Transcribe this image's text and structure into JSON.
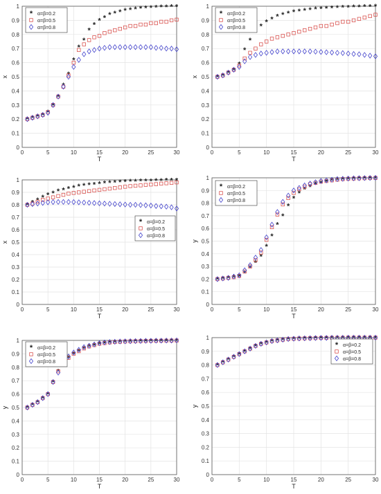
{
  "chart_data": [
    {
      "type": "scatter",
      "xlabel": "T",
      "ylabel": "x",
      "xlim": [
        0,
        30
      ],
      "ylim": [
        0,
        1
      ],
      "xticks": [
        "0",
        "5",
        "10",
        "15",
        "20",
        "25",
        "30"
      ],
      "yticks": [
        "0",
        "0.1",
        "0.2",
        "0.3",
        "0.4",
        "0.5",
        "0.6",
        "0.7",
        "0.8",
        "0.9",
        "1"
      ],
      "grid": true,
      "legend_position": "top-left",
      "x": [
        1,
        2,
        3,
        4,
        5,
        6,
        7,
        8,
        9,
        10,
        11,
        12,
        13,
        14,
        15,
        16,
        17,
        18,
        19,
        20,
        21,
        22,
        23,
        24,
        25,
        26,
        27,
        28,
        29,
        30
      ],
      "series": [
        {
          "name": "α=β=0.2",
          "marker": "star",
          "color": "#222222",
          "values": [
            0.2,
            0.21,
            0.22,
            0.23,
            0.25,
            0.3,
            0.36,
            0.44,
            0.52,
            0.62,
            0.71,
            0.76,
            0.83,
            0.87,
            0.9,
            0.92,
            0.94,
            0.95,
            0.96,
            0.97,
            0.975,
            0.98,
            0.985,
            0.988,
            0.99,
            0.992,
            0.994,
            0.995,
            0.997,
            0.998
          ]
        },
        {
          "name": "α=β=0.5",
          "marker": "square",
          "color": "#d9534f",
          "values": [
            0.2,
            0.21,
            0.22,
            0.23,
            0.25,
            0.3,
            0.36,
            0.43,
            0.51,
            0.6,
            0.69,
            0.73,
            0.76,
            0.78,
            0.79,
            0.81,
            0.82,
            0.83,
            0.84,
            0.85,
            0.86,
            0.86,
            0.87,
            0.87,
            0.88,
            0.88,
            0.89,
            0.89,
            0.9,
            0.905
          ]
        },
        {
          "name": "α=β=0.8",
          "marker": "diamond",
          "color": "#4444cc",
          "values": [
            0.2,
            0.21,
            0.22,
            0.23,
            0.245,
            0.3,
            0.36,
            0.43,
            0.5,
            0.57,
            0.62,
            0.66,
            0.68,
            0.69,
            0.7,
            0.705,
            0.71,
            0.71,
            0.71,
            0.71,
            0.71,
            0.71,
            0.71,
            0.71,
            0.71,
            0.705,
            0.705,
            0.7,
            0.7,
            0.695
          ]
        }
      ]
    },
    {
      "type": "scatter",
      "xlabel": "T",
      "ylabel": "x",
      "xlim": [
        0,
        30
      ],
      "ylim": [
        0,
        1
      ],
      "xticks": [
        "0",
        "5",
        "10",
        "15",
        "20",
        "25",
        "30"
      ],
      "yticks": [
        "0",
        "0.1",
        "0.2",
        "0.3",
        "0.4",
        "0.5",
        "0.6",
        "0.7",
        "0.8",
        "0.9",
        "1"
      ],
      "grid": true,
      "legend_position": "top-left",
      "x": [
        1,
        2,
        3,
        4,
        5,
        6,
        7,
        8,
        9,
        10,
        11,
        12,
        13,
        14,
        15,
        16,
        17,
        18,
        19,
        20,
        21,
        22,
        23,
        24,
        25,
        26,
        27,
        28,
        29,
        30
      ],
      "series": [
        {
          "name": "α=β=0.2",
          "marker": "star",
          "color": "#222222",
          "values": [
            0.5,
            0.51,
            0.53,
            0.55,
            0.59,
            0.69,
            0.76,
            0.82,
            0.86,
            0.89,
            0.91,
            0.93,
            0.94,
            0.95,
            0.96,
            0.965,
            0.97,
            0.975,
            0.98,
            0.983,
            0.986,
            0.988,
            0.99,
            0.992,
            0.993,
            0.995,
            0.996,
            0.997,
            0.998,
            0.999
          ]
        },
        {
          "name": "α=β=0.5",
          "marker": "square",
          "color": "#d9534f",
          "values": [
            0.5,
            0.51,
            0.53,
            0.55,
            0.58,
            0.63,
            0.67,
            0.7,
            0.73,
            0.75,
            0.77,
            0.78,
            0.79,
            0.8,
            0.81,
            0.82,
            0.83,
            0.84,
            0.85,
            0.86,
            0.86,
            0.87,
            0.88,
            0.89,
            0.89,
            0.9,
            0.91,
            0.92,
            0.93,
            0.94
          ]
        },
        {
          "name": "α=β=0.8",
          "marker": "diamond",
          "color": "#4444cc",
          "values": [
            0.5,
            0.51,
            0.53,
            0.55,
            0.57,
            0.61,
            0.64,
            0.655,
            0.665,
            0.67,
            0.675,
            0.68,
            0.68,
            0.68,
            0.68,
            0.68,
            0.68,
            0.68,
            0.678,
            0.676,
            0.674,
            0.672,
            0.67,
            0.668,
            0.665,
            0.662,
            0.66,
            0.655,
            0.65,
            0.645
          ]
        }
      ]
    },
    {
      "type": "scatter",
      "xlabel": "T",
      "ylabel": "x",
      "xlim": [
        0,
        30
      ],
      "ylim": [
        0,
        1
      ],
      "xticks": [
        "0",
        "5",
        "10",
        "15",
        "20",
        "25",
        "30"
      ],
      "yticks": [
        "0",
        "0.1",
        "0.2",
        "0.3",
        "0.4",
        "0.5",
        "0.6",
        "0.7",
        "0.8",
        "0.9",
        "1"
      ],
      "grid": true,
      "legend_position": "middle-right",
      "x": [
        1,
        2,
        3,
        4,
        5,
        6,
        7,
        8,
        9,
        10,
        11,
        12,
        13,
        14,
        15,
        16,
        17,
        18,
        19,
        20,
        21,
        22,
        23,
        24,
        25,
        26,
        27,
        28,
        29,
        30
      ],
      "series": [
        {
          "name": "α=β=0.2",
          "marker": "star",
          "color": "#222222",
          "values": [
            0.8,
            0.82,
            0.84,
            0.86,
            0.88,
            0.895,
            0.91,
            0.92,
            0.93,
            0.94,
            0.95,
            0.955,
            0.96,
            0.965,
            0.97,
            0.975,
            0.978,
            0.981,
            0.984,
            0.986,
            0.988,
            0.99,
            0.991,
            0.992,
            0.993,
            0.994,
            0.995,
            0.996,
            0.997,
            0.998
          ]
        },
        {
          "name": "α=β=0.5",
          "marker": "square",
          "color": "#d9534f",
          "values": [
            0.8,
            0.81,
            0.825,
            0.84,
            0.85,
            0.86,
            0.87,
            0.88,
            0.89,
            0.895,
            0.9,
            0.905,
            0.91,
            0.915,
            0.92,
            0.925,
            0.93,
            0.935,
            0.94,
            0.945,
            0.95,
            0.953,
            0.956,
            0.96,
            0.963,
            0.966,
            0.97,
            0.973,
            0.976,
            0.98
          ]
        },
        {
          "name": "α=β=0.8",
          "marker": "diamond",
          "color": "#4444cc",
          "values": [
            0.8,
            0.805,
            0.81,
            0.815,
            0.82,
            0.822,
            0.823,
            0.823,
            0.823,
            0.822,
            0.82,
            0.818,
            0.816,
            0.814,
            0.812,
            0.81,
            0.808,
            0.806,
            0.804,
            0.802,
            0.8,
            0.8,
            0.798,
            0.796,
            0.794,
            0.79,
            0.788,
            0.785,
            0.78,
            0.77
          ]
        }
      ]
    },
    {
      "type": "scatter",
      "xlabel": "T",
      "ylabel": "y",
      "xlim": [
        0,
        30
      ],
      "ylim": [
        0,
        1
      ],
      "xticks": [
        "0",
        "5",
        "10",
        "15",
        "20",
        "25",
        "30"
      ],
      "yticks": [
        "0",
        "0.1",
        "0.2",
        "0.3",
        "0.4",
        "0.5",
        "0.6",
        "0.7",
        "0.8",
        "0.9",
        "1"
      ],
      "grid": true,
      "legend_position": "top-left",
      "x": [
        1,
        2,
        3,
        4,
        5,
        6,
        7,
        8,
        9,
        10,
        11,
        12,
        13,
        14,
        15,
        16,
        17,
        18,
        19,
        20,
        21,
        22,
        23,
        24,
        25,
        26,
        27,
        28,
        29,
        30
      ],
      "series": [
        {
          "name": "α=β=0.2",
          "marker": "star",
          "color": "#222222",
          "values": [
            0.2,
            0.205,
            0.21,
            0.215,
            0.22,
            0.25,
            0.29,
            0.33,
            0.38,
            0.46,
            0.54,
            0.63,
            0.7,
            0.78,
            0.84,
            0.88,
            0.91,
            0.93,
            0.95,
            0.96,
            0.97,
            0.98,
            0.985,
            0.99,
            0.992,
            0.994,
            0.996,
            0.997,
            0.998,
            0.999
          ]
        },
        {
          "name": "α=β=0.5",
          "marker": "square",
          "color": "#d9534f",
          "values": [
            0.2,
            0.205,
            0.21,
            0.215,
            0.225,
            0.26,
            0.3,
            0.35,
            0.41,
            0.51,
            0.61,
            0.71,
            0.79,
            0.84,
            0.88,
            0.91,
            0.93,
            0.95,
            0.96,
            0.97,
            0.975,
            0.98,
            0.985,
            0.99,
            0.992,
            0.994,
            0.996,
            0.997,
            0.998,
            0.999
          ]
        },
        {
          "name": "α=β=0.8",
          "marker": "diamond",
          "color": "#4444cc",
          "values": [
            0.2,
            0.205,
            0.21,
            0.22,
            0.23,
            0.27,
            0.31,
            0.37,
            0.43,
            0.53,
            0.63,
            0.73,
            0.81,
            0.86,
            0.9,
            0.92,
            0.94,
            0.955,
            0.965,
            0.975,
            0.98,
            0.985,
            0.99,
            0.992,
            0.994,
            0.996,
            0.997,
            0.998,
            0.999,
            1.0
          ]
        }
      ]
    },
    {
      "type": "scatter",
      "xlabel": "T",
      "ylabel": "y",
      "xlim": [
        0,
        30
      ],
      "ylim": [
        0,
        1
      ],
      "xticks": [
        "0",
        "5",
        "10",
        "15",
        "20",
        "25",
        "30"
      ],
      "yticks": [
        "0",
        "0.1",
        "0.2",
        "0.3",
        "0.4",
        "0.5",
        "0.6",
        "0.7",
        "0.8",
        "0.9",
        "1"
      ],
      "grid": true,
      "legend_position": "top-left",
      "x": [
        1,
        2,
        3,
        4,
        5,
        6,
        7,
        8,
        9,
        10,
        11,
        12,
        13,
        14,
        15,
        16,
        17,
        18,
        19,
        20,
        21,
        22,
        23,
        24,
        25,
        26,
        27,
        28,
        29,
        30
      ],
      "series": [
        {
          "name": "α=β=0.2",
          "marker": "star",
          "color": "#222222",
          "values": [
            0.5,
            0.52,
            0.54,
            0.57,
            0.6,
            0.69,
            0.77,
            0.83,
            0.87,
            0.9,
            0.92,
            0.94,
            0.955,
            0.965,
            0.975,
            0.98,
            0.985,
            0.988,
            0.99,
            0.992,
            0.993,
            0.994,
            0.995,
            0.996,
            0.997,
            0.997,
            0.998,
            0.998,
            0.999,
            0.999
          ]
        },
        {
          "name": "α=β=0.5",
          "marker": "square",
          "color": "#d9534f",
          "values": [
            0.5,
            0.52,
            0.54,
            0.57,
            0.6,
            0.69,
            0.77,
            0.83,
            0.87,
            0.9,
            0.92,
            0.94,
            0.955,
            0.965,
            0.975,
            0.98,
            0.985,
            0.988,
            0.99,
            0.992,
            0.993,
            0.994,
            0.995,
            0.996,
            0.997,
            0.997,
            0.998,
            0.998,
            0.999,
            0.999
          ]
        },
        {
          "name": "α=β=0.8",
          "marker": "diamond",
          "color": "#4444cc",
          "values": [
            0.5,
            0.52,
            0.54,
            0.57,
            0.6,
            0.69,
            0.76,
            0.83,
            0.88,
            0.91,
            0.93,
            0.95,
            0.96,
            0.97,
            0.98,
            0.985,
            0.988,
            0.99,
            0.992,
            0.993,
            0.994,
            0.995,
            0.996,
            0.997,
            0.997,
            0.998,
            0.998,
            0.999,
            0.999,
            1.0
          ]
        }
      ]
    },
    {
      "type": "scatter",
      "xlabel": "T",
      "ylabel": "y",
      "xlim": [
        0,
        30
      ],
      "ylim": [
        0,
        1
      ],
      "xticks": [
        "0",
        "5",
        "10",
        "15",
        "20",
        "25",
        "30"
      ],
      "yticks": [
        "0",
        "0.1",
        "0.2",
        "0.3",
        "0.4",
        "0.5",
        "0.6",
        "0.7",
        "0.8",
        "0.9",
        "1"
      ],
      "grid": true,
      "legend_position": "top-right",
      "x": [
        1,
        2,
        3,
        4,
        5,
        6,
        7,
        8,
        9,
        10,
        11,
        12,
        13,
        14,
        15,
        16,
        17,
        18,
        19,
        20,
        21,
        22,
        23,
        24,
        25,
        26,
        27,
        28,
        29,
        30
      ],
      "series": [
        {
          "name": "α=β=0.2",
          "marker": "star",
          "color": "#222222",
          "values": [
            0.8,
            0.82,
            0.84,
            0.86,
            0.88,
            0.9,
            0.92,
            0.94,
            0.955,
            0.965,
            0.975,
            0.98,
            0.985,
            0.99,
            0.992,
            0.994,
            0.995,
            0.996,
            0.997,
            0.998,
            0.998,
            0.999,
            0.999,
            0.999,
            1.0,
            1.0,
            1.0,
            1.0,
            1.0,
            1.0
          ]
        },
        {
          "name": "α=β=0.5",
          "marker": "square",
          "color": "#d9534f",
          "values": [
            0.8,
            0.82,
            0.84,
            0.86,
            0.88,
            0.9,
            0.92,
            0.94,
            0.955,
            0.965,
            0.975,
            0.98,
            0.985,
            0.99,
            0.992,
            0.994,
            0.995,
            0.996,
            0.997,
            0.998,
            0.998,
            0.999,
            0.999,
            0.999,
            1.0,
            1.0,
            1.0,
            1.0,
            1.0,
            1.0
          ]
        },
        {
          "name": "α=β=0.8",
          "marker": "diamond",
          "color": "#4444cc",
          "values": [
            0.8,
            0.82,
            0.84,
            0.86,
            0.88,
            0.9,
            0.92,
            0.94,
            0.955,
            0.965,
            0.975,
            0.98,
            0.985,
            0.99,
            0.992,
            0.994,
            0.995,
            0.996,
            0.997,
            0.998,
            0.998,
            0.999,
            0.999,
            0.999,
            1.0,
            1.0,
            1.0,
            1.0,
            1.0,
            1.0
          ]
        }
      ]
    }
  ]
}
